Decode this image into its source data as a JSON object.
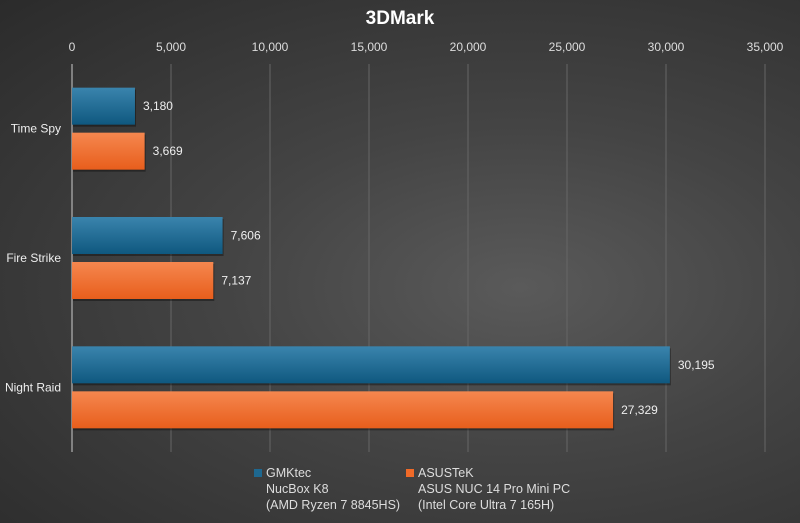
{
  "chart_data": {
    "type": "bar",
    "orientation": "horizontal",
    "title": "3DMark",
    "categories": [
      "Time Spy",
      "Fire Strike",
      "Night Raid"
    ],
    "series": [
      {
        "name": "GMKtec NucBox K8 (AMD Ryzen 7 8845HS)",
        "values": [
          3180,
          7606,
          30195
        ],
        "color": "#1e6890",
        "labels": [
          "3,180",
          "7,606",
          "30,195"
        ]
      },
      {
        "name": "ASUSTeK ASUS NUC 14 Pro Mini PC (Intel Core Ultra 7 165H)",
        "values": [
          3669,
          7137,
          27329
        ],
        "color": "#f06a28",
        "labels": [
          "3,669",
          "7,137",
          "27,329"
        ]
      }
    ],
    "xlim": [
      0,
      35000
    ],
    "xticks": [
      0,
      5000,
      10000,
      15000,
      20000,
      25000,
      30000,
      35000
    ],
    "xtick_labels": [
      "0",
      "5,000",
      "10,000",
      "15,000",
      "20,000",
      "25,000",
      "30,000",
      "35,000"
    ],
    "axis_position": "top",
    "grid": true,
    "legend_position": "bottom"
  },
  "legend": [
    {
      "lines": [
        "GMKtec",
        "NucBox K8",
        "(AMD Ryzen 7 8845HS)"
      ],
      "color": "#1e6890"
    },
    {
      "lines": [
        "ASUSTeK",
        "ASUS NUC 14 Pro Mini PC",
        "(Intel Core Ultra 7 165H)"
      ],
      "color": "#f06a28"
    }
  ]
}
